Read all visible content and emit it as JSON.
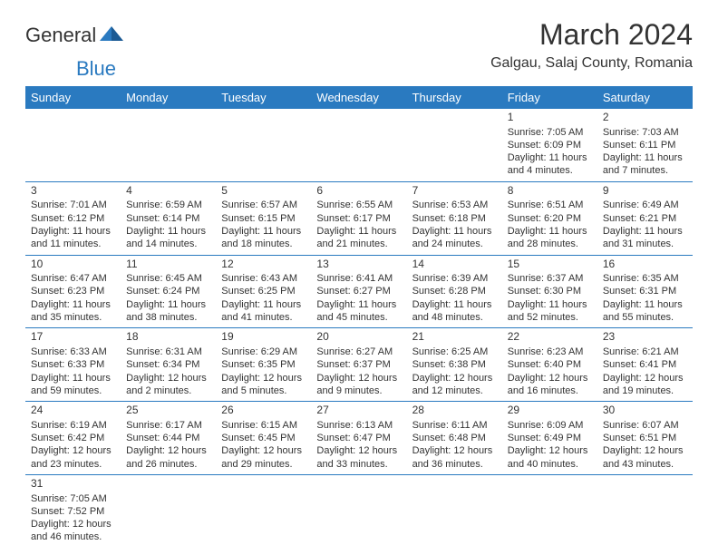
{
  "logo": {
    "prefix": "General",
    "suffix": "Blue"
  },
  "title": "March 2024",
  "location": "Galgau, Salaj County, Romania",
  "weekdays": [
    "Sunday",
    "Monday",
    "Tuesday",
    "Wednesday",
    "Thursday",
    "Friday",
    "Saturday"
  ],
  "colors": {
    "header_bg": "#2a7ac0",
    "header_fg": "#ffffff",
    "border": "#2a7ac0"
  },
  "days": {
    "1": {
      "sunrise": "7:05 AM",
      "sunset": "6:09 PM",
      "daylight": "11 hours and 4 minutes."
    },
    "2": {
      "sunrise": "7:03 AM",
      "sunset": "6:11 PM",
      "daylight": "11 hours and 7 minutes."
    },
    "3": {
      "sunrise": "7:01 AM",
      "sunset": "6:12 PM",
      "daylight": "11 hours and 11 minutes."
    },
    "4": {
      "sunrise": "6:59 AM",
      "sunset": "6:14 PM",
      "daylight": "11 hours and 14 minutes."
    },
    "5": {
      "sunrise": "6:57 AM",
      "sunset": "6:15 PM",
      "daylight": "11 hours and 18 minutes."
    },
    "6": {
      "sunrise": "6:55 AM",
      "sunset": "6:17 PM",
      "daylight": "11 hours and 21 minutes."
    },
    "7": {
      "sunrise": "6:53 AM",
      "sunset": "6:18 PM",
      "daylight": "11 hours and 24 minutes."
    },
    "8": {
      "sunrise": "6:51 AM",
      "sunset": "6:20 PM",
      "daylight": "11 hours and 28 minutes."
    },
    "9": {
      "sunrise": "6:49 AM",
      "sunset": "6:21 PM",
      "daylight": "11 hours and 31 minutes."
    },
    "10": {
      "sunrise": "6:47 AM",
      "sunset": "6:23 PM",
      "daylight": "11 hours and 35 minutes."
    },
    "11": {
      "sunrise": "6:45 AM",
      "sunset": "6:24 PM",
      "daylight": "11 hours and 38 minutes."
    },
    "12": {
      "sunrise": "6:43 AM",
      "sunset": "6:25 PM",
      "daylight": "11 hours and 41 minutes."
    },
    "13": {
      "sunrise": "6:41 AM",
      "sunset": "6:27 PM",
      "daylight": "11 hours and 45 minutes."
    },
    "14": {
      "sunrise": "6:39 AM",
      "sunset": "6:28 PM",
      "daylight": "11 hours and 48 minutes."
    },
    "15": {
      "sunrise": "6:37 AM",
      "sunset": "6:30 PM",
      "daylight": "11 hours and 52 minutes."
    },
    "16": {
      "sunrise": "6:35 AM",
      "sunset": "6:31 PM",
      "daylight": "11 hours and 55 minutes."
    },
    "17": {
      "sunrise": "6:33 AM",
      "sunset": "6:33 PM",
      "daylight": "11 hours and 59 minutes."
    },
    "18": {
      "sunrise": "6:31 AM",
      "sunset": "6:34 PM",
      "daylight": "12 hours and 2 minutes."
    },
    "19": {
      "sunrise": "6:29 AM",
      "sunset": "6:35 PM",
      "daylight": "12 hours and 5 minutes."
    },
    "20": {
      "sunrise": "6:27 AM",
      "sunset": "6:37 PM",
      "daylight": "12 hours and 9 minutes."
    },
    "21": {
      "sunrise": "6:25 AM",
      "sunset": "6:38 PM",
      "daylight": "12 hours and 12 minutes."
    },
    "22": {
      "sunrise": "6:23 AM",
      "sunset": "6:40 PM",
      "daylight": "12 hours and 16 minutes."
    },
    "23": {
      "sunrise": "6:21 AM",
      "sunset": "6:41 PM",
      "daylight": "12 hours and 19 minutes."
    },
    "24": {
      "sunrise": "6:19 AM",
      "sunset": "6:42 PM",
      "daylight": "12 hours and 23 minutes."
    },
    "25": {
      "sunrise": "6:17 AM",
      "sunset": "6:44 PM",
      "daylight": "12 hours and 26 minutes."
    },
    "26": {
      "sunrise": "6:15 AM",
      "sunset": "6:45 PM",
      "daylight": "12 hours and 29 minutes."
    },
    "27": {
      "sunrise": "6:13 AM",
      "sunset": "6:47 PM",
      "daylight": "12 hours and 33 minutes."
    },
    "28": {
      "sunrise": "6:11 AM",
      "sunset": "6:48 PM",
      "daylight": "12 hours and 36 minutes."
    },
    "29": {
      "sunrise": "6:09 AM",
      "sunset": "6:49 PM",
      "daylight": "12 hours and 40 minutes."
    },
    "30": {
      "sunrise": "6:07 AM",
      "sunset": "6:51 PM",
      "daylight": "12 hours and 43 minutes."
    },
    "31": {
      "sunrise": "7:05 AM",
      "sunset": "7:52 PM",
      "daylight": "12 hours and 46 minutes."
    }
  },
  "layout": {
    "weeks": [
      [
        null,
        null,
        null,
        null,
        null,
        1,
        2
      ],
      [
        3,
        4,
        5,
        6,
        7,
        8,
        9
      ],
      [
        10,
        11,
        12,
        13,
        14,
        15,
        16
      ],
      [
        17,
        18,
        19,
        20,
        21,
        22,
        23
      ],
      [
        24,
        25,
        26,
        27,
        28,
        29,
        30
      ],
      [
        31,
        null,
        null,
        null,
        null,
        null,
        null
      ]
    ]
  }
}
